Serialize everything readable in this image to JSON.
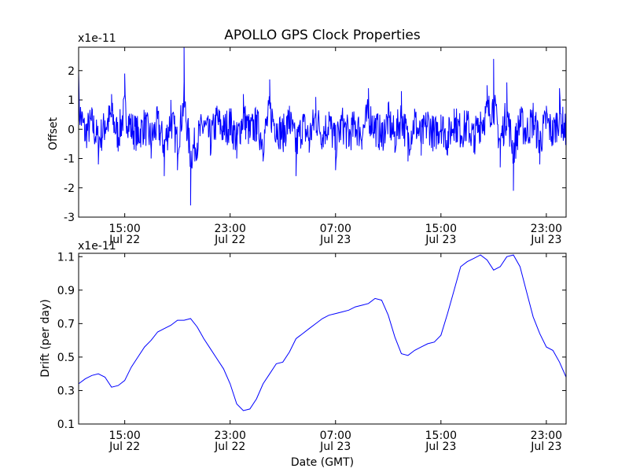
{
  "chart_data": [
    {
      "type": "line",
      "title": "APOLLO GPS Clock Properties",
      "xlabel": "",
      "ylabel": "Offset",
      "scale_label": "x1e-11",
      "xlim": [
        "2014-07-22T11:30",
        "2014-07-24T00:30"
      ],
      "ylim": [
        -3,
        2.8
      ],
      "yticks": [
        {
          "value": -3,
          "label": "-3"
        },
        {
          "value": -2,
          "label": "-2"
        },
        {
          "value": -1,
          "label": "-1"
        },
        {
          "value": 0,
          "label": "0"
        },
        {
          "value": 1,
          "label": "1"
        },
        {
          "value": 2,
          "label": "2"
        }
      ],
      "xticks": [
        {
          "time": "2014-07-22T15:00",
          "label1": "15:00",
          "label2": "Jul 22"
        },
        {
          "time": "2014-07-22T23:00",
          "label1": "23:00",
          "label2": "Jul 22"
        },
        {
          "time": "2014-07-23T07:00",
          "label1": "07:00",
          "label2": "Jul 23"
        },
        {
          "time": "2014-07-23T15:00",
          "label1": "15:00",
          "label2": "Jul 23"
        },
        {
          "time": "2014-07-23T23:00",
          "label1": "23:00",
          "label2": "Jul 23"
        }
      ],
      "grid": false,
      "color": "#0000ff",
      "series": [
        {
          "x": [
            "2014-07-22T11:30",
            "2014-07-22T12:00",
            "2014-07-22T12:30",
            "2014-07-22T13:00",
            "2014-07-22T13:30",
            "2014-07-22T14:00",
            "2014-07-22T14:30",
            "2014-07-22T15:00",
            "2014-07-22T15:30",
            "2014-07-22T16:00",
            "2014-07-22T16:30",
            "2014-07-22T17:00",
            "2014-07-22T17:30",
            "2014-07-22T18:00",
            "2014-07-22T18:30",
            "2014-07-22T19:00",
            "2014-07-22T19:30",
            "2014-07-22T20:00",
            "2014-07-22T20:30",
            "2014-07-22T21:00",
            "2014-07-22T21:30",
            "2014-07-22T22:00",
            "2014-07-22T22:30",
            "2014-07-22T23:00",
            "2014-07-22T23:30",
            "2014-07-23T00:00",
            "2014-07-23T00:30",
            "2014-07-23T01:00",
            "2014-07-23T01:30",
            "2014-07-23T02:00",
            "2014-07-23T02:30",
            "2014-07-23T03:00",
            "2014-07-23T03:30",
            "2014-07-23T04:00",
            "2014-07-23T04:30",
            "2014-07-23T05:00",
            "2014-07-23T05:30",
            "2014-07-23T06:00",
            "2014-07-23T06:30",
            "2014-07-23T07:00",
            "2014-07-23T07:30",
            "2014-07-23T08:00",
            "2014-07-23T08:30",
            "2014-07-23T09:00",
            "2014-07-23T09:30",
            "2014-07-23T10:00",
            "2014-07-23T10:30",
            "2014-07-23T11:00",
            "2014-07-23T11:30",
            "2014-07-23T12:00",
            "2014-07-23T12:30",
            "2014-07-23T13:00",
            "2014-07-23T13:30",
            "2014-07-23T14:00",
            "2014-07-23T14:30",
            "2014-07-23T15:00",
            "2014-07-23T15:30",
            "2014-07-23T16:00",
            "2014-07-23T16:30",
            "2014-07-23T17:00",
            "2014-07-23T17:30",
            "2014-07-23T18:00",
            "2014-07-23T18:30",
            "2014-07-23T19:00",
            "2014-07-23T19:30",
            "2014-07-23T20:00",
            "2014-07-23T20:30",
            "2014-07-23T21:00",
            "2014-07-23T21:30",
            "2014-07-23T22:00",
            "2014-07-23T22:30",
            "2014-07-23T23:00",
            "2014-07-23T23:30",
            "2014-07-24T00:00",
            "2014-07-24T00:30"
          ],
          "y": [
            2.0,
            -0.4,
            0.6,
            -1.2,
            0.3,
            1.2,
            -0.6,
            1.9,
            0.1,
            -0.5,
            0.4,
            -1.0,
            0.5,
            -1.6,
            1.0,
            -1.4,
            2.8,
            -2.6,
            -1.0,
            0.3,
            -0.9,
            0.8,
            -0.1,
            0.6,
            -1.0,
            1.2,
            -0.3,
            0.5,
            -1.1,
            1.7,
            0.2,
            -0.5,
            0.8,
            -1.6,
            0.4,
            -0.8,
            1.1,
            -0.4,
            0.6,
            -1.4,
            0.5,
            -0.6,
            0.3,
            -0.4,
            1.4,
            0.2,
            -0.6,
            0.9,
            -0.8,
            1.3,
            -1.1,
            0.7,
            -0.9,
            0.6,
            -0.6,
            0.5,
            -0.9,
            0.7,
            -0.2,
            0.3,
            -0.8,
            0.6,
            1.5,
            2.4,
            -1.3,
            1.6,
            -2.1,
            0.7,
            -0.3,
            0.9,
            -1.2,
            0.8,
            -0.5,
            1.4,
            -0.4
          ]
        }
      ]
    },
    {
      "type": "line",
      "title": "",
      "xlabel": "Date (GMT)",
      "ylabel": "Drift (per day)",
      "scale_label": "x1e-11",
      "xlim": [
        "2014-07-22T11:30",
        "2014-07-24T00:30"
      ],
      "ylim": [
        0.1,
        1.12
      ],
      "yticks": [
        {
          "value": 0.1,
          "label": "0.1"
        },
        {
          "value": 0.3,
          "label": "0.3"
        },
        {
          "value": 0.5,
          "label": "0.5"
        },
        {
          "value": 0.7,
          "label": "0.7"
        },
        {
          "value": 0.9,
          "label": "0.9"
        },
        {
          "value": 1.1,
          "label": "1.1"
        }
      ],
      "xticks": [
        {
          "time": "2014-07-22T15:00",
          "label1": "15:00",
          "label2": "Jul 22"
        },
        {
          "time": "2014-07-22T23:00",
          "label1": "23:00",
          "label2": "Jul 22"
        },
        {
          "time": "2014-07-23T07:00",
          "label1": "07:00",
          "label2": "Jul 23"
        },
        {
          "time": "2014-07-23T15:00",
          "label1": "15:00",
          "label2": "Jul 23"
        },
        {
          "time": "2014-07-23T23:00",
          "label1": "23:00",
          "label2": "Jul 23"
        }
      ],
      "grid": false,
      "color": "#0000ff",
      "series": [
        {
          "x": [
            "2014-07-22T11:30",
            "2014-07-22T12:00",
            "2014-07-22T12:30",
            "2014-07-22T13:00",
            "2014-07-22T13:30",
            "2014-07-22T14:00",
            "2014-07-22T14:30",
            "2014-07-22T15:00",
            "2014-07-22T15:30",
            "2014-07-22T16:00",
            "2014-07-22T16:30",
            "2014-07-22T17:00",
            "2014-07-22T17:30",
            "2014-07-22T18:00",
            "2014-07-22T18:30",
            "2014-07-22T19:00",
            "2014-07-22T19:30",
            "2014-07-22T20:00",
            "2014-07-22T20:30",
            "2014-07-22T21:00",
            "2014-07-22T21:30",
            "2014-07-22T22:00",
            "2014-07-22T22:30",
            "2014-07-22T23:00",
            "2014-07-22T23:30",
            "2014-07-23T00:00",
            "2014-07-23T00:30",
            "2014-07-23T01:00",
            "2014-07-23T01:30",
            "2014-07-23T02:00",
            "2014-07-23T02:30",
            "2014-07-23T03:00",
            "2014-07-23T03:30",
            "2014-07-23T04:00",
            "2014-07-23T04:30",
            "2014-07-23T05:00",
            "2014-07-23T05:30",
            "2014-07-23T06:00",
            "2014-07-23T06:30",
            "2014-07-23T07:00",
            "2014-07-23T07:30",
            "2014-07-23T08:00",
            "2014-07-23T08:30",
            "2014-07-23T09:00",
            "2014-07-23T09:30",
            "2014-07-23T10:00",
            "2014-07-23T10:30",
            "2014-07-23T11:00",
            "2014-07-23T11:30",
            "2014-07-23T12:00",
            "2014-07-23T12:30",
            "2014-07-23T13:00",
            "2014-07-23T13:30",
            "2014-07-23T14:00",
            "2014-07-23T14:30",
            "2014-07-23T15:00",
            "2014-07-23T15:30",
            "2014-07-23T16:00",
            "2014-07-23T16:30",
            "2014-07-23T17:00",
            "2014-07-23T17:30",
            "2014-07-23T18:00",
            "2014-07-23T18:30",
            "2014-07-23T19:00",
            "2014-07-23T19:30",
            "2014-07-23T20:00",
            "2014-07-23T20:30",
            "2014-07-23T21:00",
            "2014-07-23T21:30",
            "2014-07-23T22:00",
            "2014-07-23T22:30",
            "2014-07-23T23:00",
            "2014-07-23T23:30",
            "2014-07-24T00:00",
            "2014-07-24T00:30"
          ],
          "y": [
            0.34,
            0.37,
            0.39,
            0.4,
            0.38,
            0.32,
            0.33,
            0.36,
            0.44,
            0.5,
            0.56,
            0.6,
            0.65,
            0.67,
            0.69,
            0.72,
            0.72,
            0.73,
            0.68,
            0.61,
            0.55,
            0.49,
            0.43,
            0.34,
            0.22,
            0.18,
            0.19,
            0.25,
            0.34,
            0.4,
            0.46,
            0.47,
            0.53,
            0.61,
            0.64,
            0.67,
            0.7,
            0.73,
            0.75,
            0.76,
            0.77,
            0.78,
            0.8,
            0.81,
            0.82,
            0.85,
            0.84,
            0.75,
            0.62,
            0.52,
            0.51,
            0.54,
            0.56,
            0.58,
            0.59,
            0.63,
            0.76,
            0.9,
            1.04,
            1.07,
            1.09,
            1.11,
            1.08,
            1.02,
            1.04,
            1.1,
            1.11,
            1.04,
            0.89,
            0.74,
            0.64,
            0.56,
            0.54,
            0.47,
            0.38
          ]
        }
      ]
    }
  ]
}
